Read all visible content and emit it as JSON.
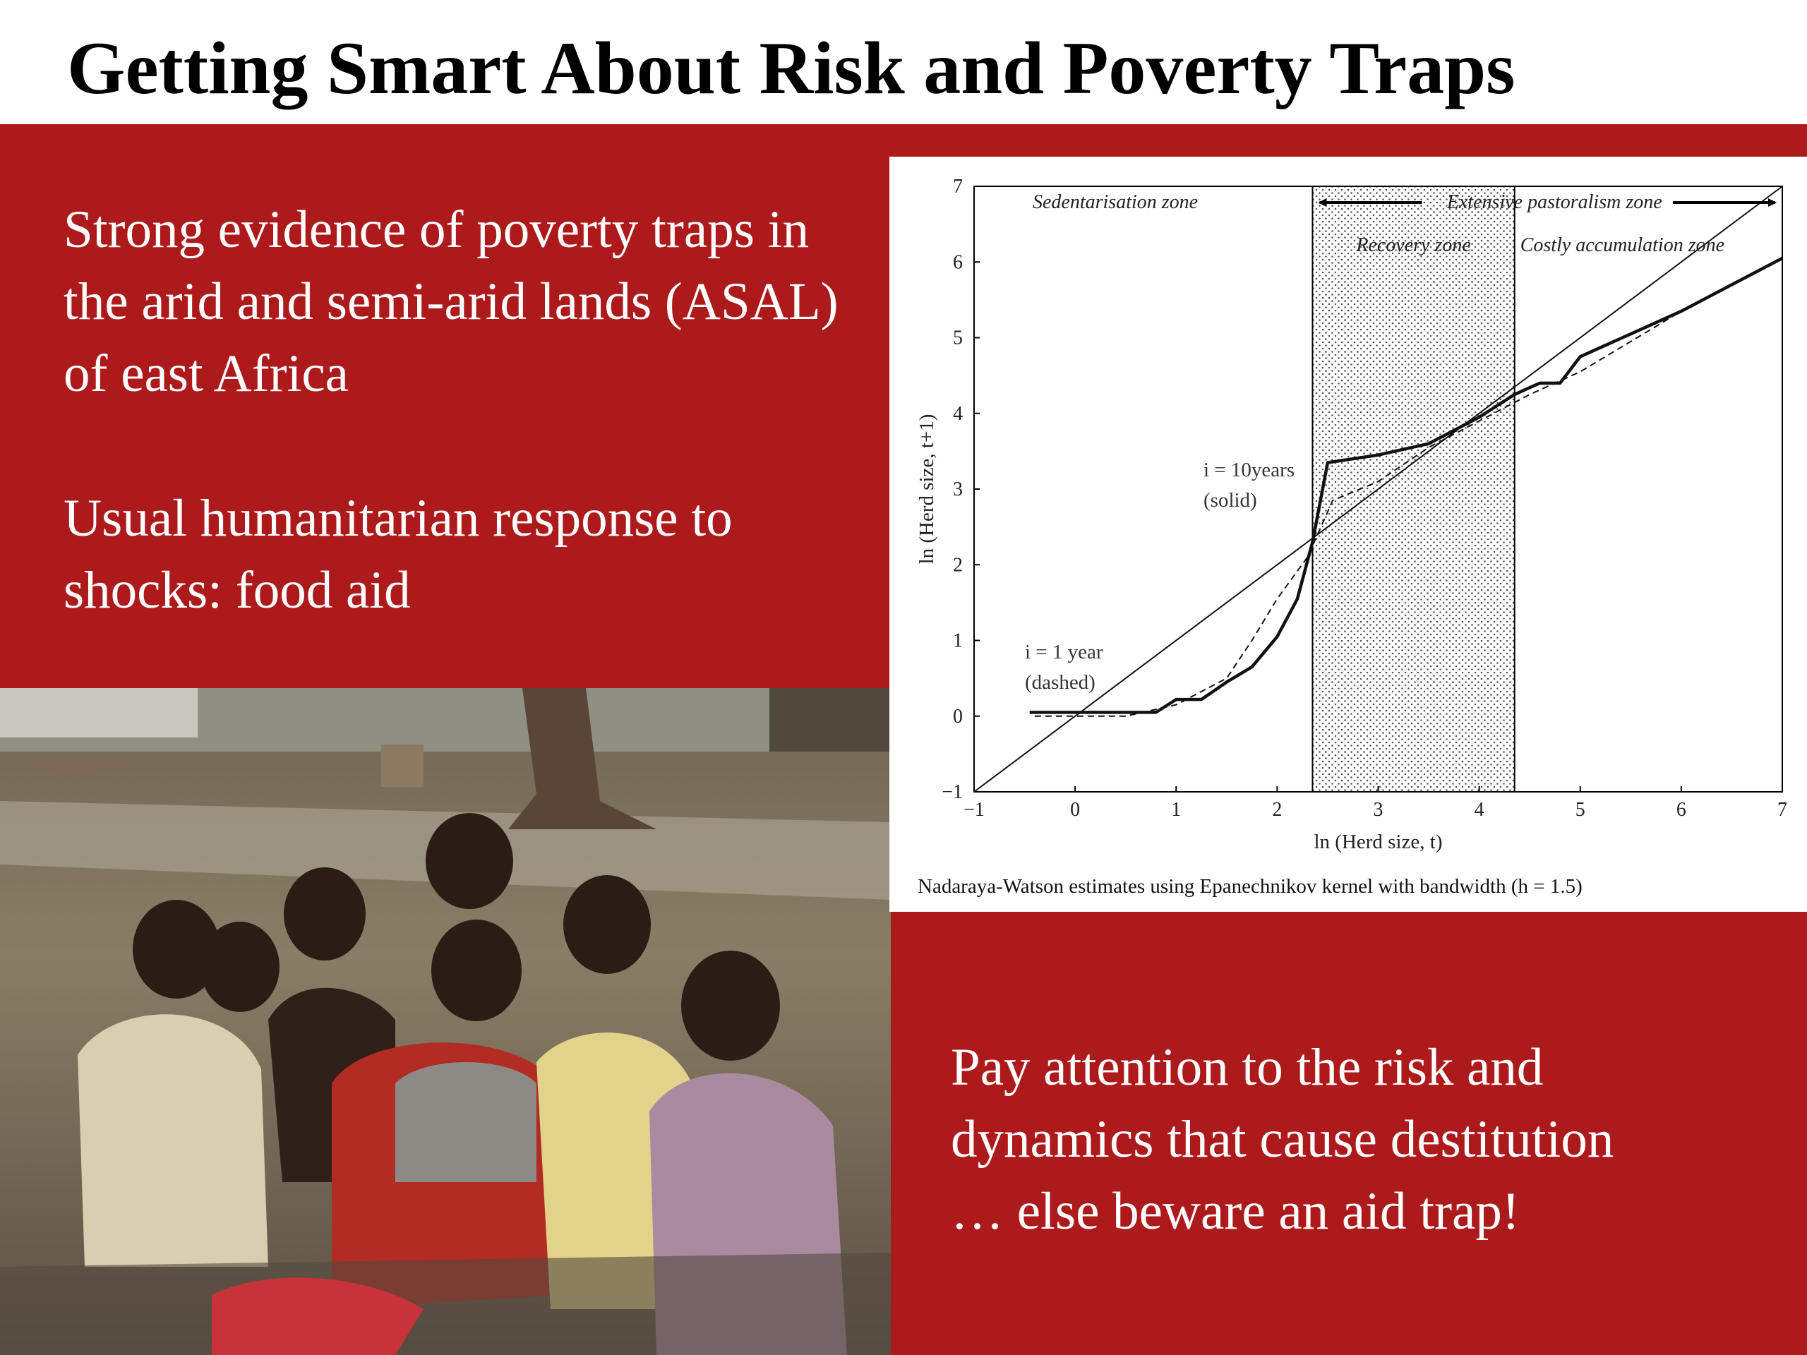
{
  "slide": {
    "title": "Getting Smart About Risk and Poverty Traps",
    "text_top_1": "Strong evidence of poverty traps in the arid and semi-arid lands (ASAL) of east Africa",
    "text_top_2": "Usual humanitarian response to shocks: food aid",
    "text_bottom_lines": [
      "Pay attention to the risk and",
      "dynamics that cause destitution",
      "…  else beware an aid trap!"
    ],
    "colors": {
      "band": "#ad1a1c",
      "text": "#ffffff",
      "title": "#000000"
    },
    "photo": {
      "icon": "children-photo"
    }
  },
  "chart_data": {
    "type": "line",
    "xlabel": "ln (Herd size, t)",
    "ylabel": "ln (Herd size, t+1)",
    "xlim": [
      -1,
      7
    ],
    "ylim": [
      -1,
      7
    ],
    "x_ticks": [
      "−1",
      "0",
      "1",
      "2",
      "3",
      "4",
      "5",
      "6",
      "7"
    ],
    "y_ticks": [
      "−1",
      "0",
      "1",
      "2",
      "3",
      "4",
      "5",
      "6",
      "7"
    ],
    "caption": "Nadaraya-Watson estimates using Epanechnikov kernel with bandwidth (h = 1.5)",
    "zones": {
      "sedentarisation": "Sedentarisation zone",
      "extensive": "Extensive pastoralism zone",
      "recovery": "Recovery zone",
      "costly": "Costly accumulation zone"
    },
    "recovery_zone_x": [
      2.35,
      4.35
    ],
    "annotations": {
      "solid_a": "i = 10years",
      "solid_b": "(solid)",
      "dashed_a": "i = 1 year",
      "dashed_b": "(dashed)"
    },
    "series": [
      {
        "style": "diagonal",
        "x": [
          -1,
          7
        ],
        "y": [
          -1,
          7
        ]
      },
      {
        "style": "solid",
        "x": [
          -0.45,
          0,
          0.8,
          1.0,
          1.25,
          1.5,
          1.75,
          2.0,
          2.2,
          2.35,
          2.5,
          3.0,
          3.5,
          4.0,
          4.35,
          4.6,
          4.8,
          5.0,
          5.5,
          6.0,
          6.5,
          7.0
        ],
        "y": [
          0.05,
          0.05,
          0.05,
          0.22,
          0.22,
          0.45,
          0.65,
          1.05,
          1.55,
          2.3,
          3.35,
          3.45,
          3.6,
          3.95,
          4.25,
          4.4,
          4.4,
          4.75,
          5.05,
          5.35,
          5.7,
          6.05
        ]
      },
      {
        "style": "dashed",
        "x": [
          -0.4,
          0,
          0.5,
          1.0,
          1.5,
          1.75,
          2.0,
          2.3,
          2.55,
          3.0,
          3.5,
          4.0,
          4.5,
          5.0,
          5.5,
          6.0,
          6.5,
          7.0
        ],
        "y": [
          0.0,
          0.0,
          0.0,
          0.15,
          0.5,
          1.0,
          1.55,
          2.1,
          2.85,
          3.1,
          3.55,
          3.9,
          4.25,
          4.55,
          4.95,
          5.35,
          5.7,
          6.05
        ]
      }
    ]
  }
}
